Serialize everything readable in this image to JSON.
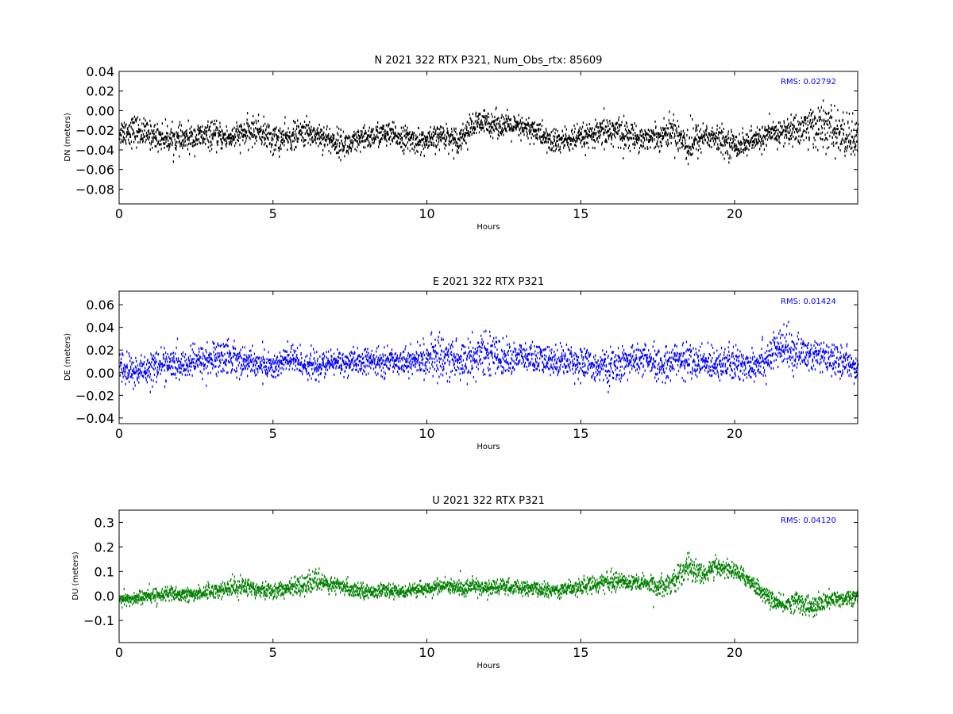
{
  "colors": {
    "background": "#ffffff",
    "axes": "#000000",
    "rms_text": "#0000ff"
  },
  "chart_data": [
    {
      "type": "scatter",
      "title": "N 2021 322 RTX  P321, Num_Obs_rtx: 85609",
      "xlabel": "Hours",
      "ylabel": "DN (meters)",
      "xlim": [
        0,
        24
      ],
      "ylim": [
        -0.095,
        0.04
      ],
      "xticks": [
        0,
        5,
        10,
        15,
        20
      ],
      "xtick_labels": [
        "0",
        "5",
        "10",
        "15",
        "20"
      ],
      "yticks": [
        -0.08,
        -0.06,
        -0.04,
        -0.02,
        0.0,
        0.02,
        0.04
      ],
      "ytick_labels": [
        "−0.08",
        "−0.06",
        "−0.04",
        "−0.02",
        "0.00",
        "0.02",
        "0.04"
      ],
      "annotation": "RMS:  0.02792",
      "grid": false,
      "series": [
        {
          "color": "#000000",
          "x": [
            0,
            0.5,
            1,
            1.5,
            2,
            2.5,
            3,
            3.5,
            4,
            4.5,
            5,
            5.5,
            6,
            6.5,
            7,
            7.5,
            8,
            8.5,
            9,
            9.5,
            10,
            10.5,
            11,
            11.5,
            12,
            12.5,
            13,
            13.5,
            14,
            14.5,
            15,
            15.5,
            16,
            16.5,
            17,
            17.5,
            18,
            18.5,
            19,
            19.5,
            20,
            20.5,
            21,
            21.5,
            22,
            22.5,
            23,
            23.5,
            24
          ],
          "y": [
            -0.022,
            -0.02,
            -0.025,
            -0.028,
            -0.03,
            -0.027,
            -0.025,
            -0.028,
            -0.024,
            -0.02,
            -0.03,
            -0.028,
            -0.022,
            -0.025,
            -0.032,
            -0.035,
            -0.028,
            -0.024,
            -0.026,
            -0.03,
            -0.032,
            -0.025,
            -0.03,
            -0.015,
            -0.012,
            -0.015,
            -0.018,
            -0.02,
            -0.032,
            -0.03,
            -0.028,
            -0.025,
            -0.02,
            -0.025,
            -0.028,
            -0.026,
            -0.02,
            -0.035,
            -0.025,
            -0.03,
            -0.035,
            -0.032,
            -0.026,
            -0.022,
            -0.02,
            -0.015,
            -0.018,
            -0.025,
            -0.03
          ],
          "spread": [
            0.012,
            0.014,
            0.012,
            0.012,
            0.012,
            0.012,
            0.012,
            0.011,
            0.012,
            0.012,
            0.014,
            0.012,
            0.012,
            0.012,
            0.012,
            0.012,
            0.011,
            0.011,
            0.011,
            0.011,
            0.011,
            0.011,
            0.011,
            0.012,
            0.012,
            0.011,
            0.011,
            0.011,
            0.012,
            0.012,
            0.011,
            0.011,
            0.018,
            0.012,
            0.011,
            0.011,
            0.014,
            0.02,
            0.012,
            0.012,
            0.012,
            0.011,
            0.011,
            0.012,
            0.014,
            0.02,
            0.02,
            0.02,
            0.02
          ]
        }
      ]
    },
    {
      "type": "scatter",
      "title": "E 2021 322 RTX  P321",
      "xlabel": "Hours",
      "ylabel": "DE (meters)",
      "xlim": [
        0,
        24
      ],
      "ylim": [
        -0.045,
        0.072
      ],
      "xticks": [
        0,
        5,
        10,
        15,
        20
      ],
      "xtick_labels": [
        "0",
        "5",
        "10",
        "15",
        "20"
      ],
      "yticks": [
        -0.04,
        -0.02,
        0.0,
        0.02,
        0.04,
        0.06
      ],
      "ytick_labels": [
        "−0.04",
        "−0.02",
        "0.00",
        "0.02",
        "0.04",
        "0.06"
      ],
      "annotation": "RMS:  0.01424",
      "grid": false,
      "series": [
        {
          "color": "#0000ff",
          "x": [
            0,
            0.5,
            1,
            1.5,
            2,
            2.5,
            3,
            3.5,
            4,
            4.5,
            5,
            5.5,
            6,
            6.5,
            7,
            7.5,
            8,
            8.5,
            9,
            9.5,
            10,
            10.5,
            11,
            11.5,
            12,
            12.5,
            13,
            13.5,
            14,
            14.5,
            15,
            15.5,
            16,
            16.5,
            17,
            17.5,
            18,
            18.5,
            19,
            19.5,
            20,
            20.5,
            21,
            21.5,
            22,
            22.5,
            23,
            23.5,
            24
          ],
          "y": [
            0.005,
            0.0,
            0.005,
            0.008,
            0.006,
            0.01,
            0.012,
            0.015,
            0.01,
            0.008,
            0.005,
            0.012,
            0.008,
            0.005,
            0.01,
            0.008,
            0.01,
            0.009,
            0.011,
            0.01,
            0.012,
            0.015,
            0.01,
            0.014,
            0.018,
            0.012,
            0.014,
            0.012,
            0.01,
            0.012,
            0.008,
            0.006,
            0.004,
            0.01,
            0.012,
            0.005,
            0.012,
            0.01,
            0.008,
            0.01,
            0.006,
            0.008,
            0.012,
            0.022,
            0.018,
            0.015,
            0.012,
            0.01,
            0.005
          ],
          "spread": [
            0.012,
            0.014,
            0.013,
            0.012,
            0.011,
            0.012,
            0.014,
            0.015,
            0.011,
            0.011,
            0.011,
            0.013,
            0.011,
            0.01,
            0.01,
            0.01,
            0.01,
            0.01,
            0.01,
            0.01,
            0.014,
            0.018,
            0.018,
            0.016,
            0.016,
            0.013,
            0.012,
            0.012,
            0.012,
            0.012,
            0.012,
            0.012,
            0.014,
            0.012,
            0.012,
            0.014,
            0.012,
            0.014,
            0.013,
            0.013,
            0.014,
            0.014,
            0.015,
            0.016,
            0.014,
            0.013,
            0.012,
            0.011,
            0.01
          ]
        }
      ]
    },
    {
      "type": "scatter",
      "title": "U 2021 322 RTX  P321",
      "xlabel": "Hours",
      "ylabel": "DU (meters)",
      "xlim": [
        0,
        24
      ],
      "ylim": [
        -0.19,
        0.35
      ],
      "xticks": [
        0,
        5,
        10,
        15,
        20
      ],
      "xtick_labels": [
        "0",
        "5",
        "10",
        "15",
        "20"
      ],
      "yticks": [
        -0.1,
        0.0,
        0.1,
        0.2,
        0.3
      ],
      "ytick_labels": [
        "−0.1",
        "0.0",
        "0.1",
        "0.2",
        "0.3"
      ],
      "annotation": "RMS:  0.04120",
      "grid": false,
      "series": [
        {
          "color": "#008000",
          "x": [
            0,
            0.5,
            1,
            1.5,
            2,
            2.5,
            3,
            3.5,
            4,
            4.5,
            5,
            5.5,
            6,
            6.5,
            7,
            7.5,
            8,
            8.5,
            9,
            9.5,
            10,
            10.5,
            11,
            11.5,
            12,
            12.5,
            13,
            13.5,
            14,
            14.5,
            15,
            15.5,
            16,
            16.5,
            17,
            17.5,
            18,
            18.5,
            19,
            19.5,
            20,
            20.5,
            21,
            21.5,
            22,
            22.5,
            23,
            23.5,
            24
          ],
          "y": [
            -0.02,
            -0.01,
            0.0,
            0.01,
            0.0,
            0.01,
            0.02,
            0.03,
            0.04,
            0.03,
            0.02,
            0.03,
            0.05,
            0.06,
            0.04,
            0.03,
            0.02,
            0.02,
            0.02,
            0.02,
            0.03,
            0.04,
            0.03,
            0.04,
            0.03,
            0.04,
            0.03,
            0.03,
            0.02,
            0.03,
            0.04,
            0.05,
            0.06,
            0.06,
            0.05,
            0.04,
            0.06,
            0.12,
            0.09,
            0.12,
            0.1,
            0.06,
            0.0,
            -0.04,
            -0.02,
            -0.05,
            -0.02,
            -0.01,
            0.0
          ],
          "spread": [
            0.025,
            0.025,
            0.025,
            0.025,
            0.025,
            0.025,
            0.028,
            0.03,
            0.035,
            0.03,
            0.03,
            0.03,
            0.035,
            0.035,
            0.03,
            0.028,
            0.025,
            0.022,
            0.022,
            0.022,
            0.025,
            0.028,
            0.03,
            0.03,
            0.03,
            0.028,
            0.025,
            0.025,
            0.025,
            0.028,
            0.03,
            0.03,
            0.032,
            0.032,
            0.03,
            0.035,
            0.04,
            0.05,
            0.035,
            0.035,
            0.03,
            0.03,
            0.03,
            0.03,
            0.035,
            0.04,
            0.035,
            0.03,
            0.025
          ]
        }
      ]
    }
  ]
}
